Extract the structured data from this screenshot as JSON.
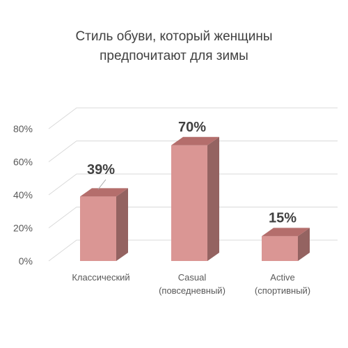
{
  "chart_data": {
    "type": "bar",
    "title_lines": [
      "Стиль обуви, который женщины",
      "предпочитают для зимы"
    ],
    "categories": [
      [
        "Классический"
      ],
      [
        "Casual",
        "(повседневный)"
      ],
      [
        "Active",
        "(спортивный)"
      ]
    ],
    "values": [
      39,
      70,
      15
    ],
    "data_labels": [
      "39%",
      "70%",
      "15%"
    ],
    "y_ticks": [
      "0%",
      "20%",
      "40%",
      "60%",
      "80%"
    ],
    "ylim": [
      0,
      80
    ],
    "grid": true,
    "legend": "none",
    "three_d": true,
    "colors": {
      "bar_front": "#DA9694",
      "bar_top": "#B46E6C",
      "bar_side": "#946361",
      "grid": "#D9D9D9",
      "axis_text": "#595959",
      "label_text": "#404040"
    }
  }
}
